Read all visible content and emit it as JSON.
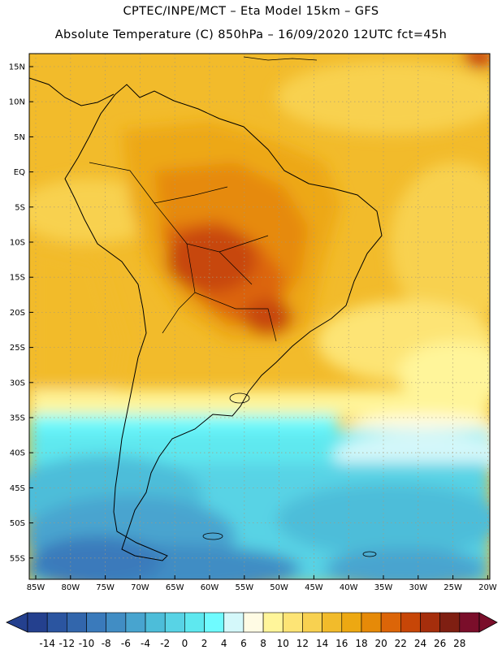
{
  "header": {
    "title_line1": "CPTEC/INPE/MCT –  Eta Model 15km – GFS",
    "title_line2": "Absolute Temperature (C) 850hPa – 16/09/2020 12UTC fct=45h"
  },
  "map": {
    "lat_labels": [
      "15N",
      "10N",
      "5N",
      "EQ",
      "5S",
      "10S",
      "15S",
      "20S",
      "25S",
      "30S",
      "35S",
      "40S",
      "45S",
      "50S",
      "55S"
    ],
    "lon_labels": [
      "85W",
      "80W",
      "75W",
      "70W",
      "65W",
      "60W",
      "55W",
      "50W",
      "45W",
      "40W",
      "35W",
      "30W",
      "25W",
      "20W"
    ]
  },
  "colorbar": {
    "ticks": [
      "-14",
      "-12",
      "-10",
      "-8",
      "-6",
      "-4",
      "-2",
      "0",
      "2",
      "4",
      "6",
      "8",
      "10",
      "12",
      "14",
      "16",
      "18",
      "20",
      "22",
      "24",
      "26",
      "28"
    ],
    "colors": [
      "#24408e",
      "#2b55a0",
      "#3266ac",
      "#3a7abb",
      "#418dc4",
      "#48a4cf",
      "#4dbdd9",
      "#58d3e5",
      "#5ee8ef",
      "#6ffbff",
      "#d4f8fa",
      "#fffbe4",
      "#fff59a",
      "#fde475",
      "#f8d150",
      "#f2bb2b",
      "#eda812",
      "#e68a08",
      "#dc6508",
      "#c74607",
      "#a52e0c",
      "#7f1f12",
      "#7a0e2a"
    ],
    "under_color": "#24408e",
    "over_color": "#7a0e2a"
  }
}
